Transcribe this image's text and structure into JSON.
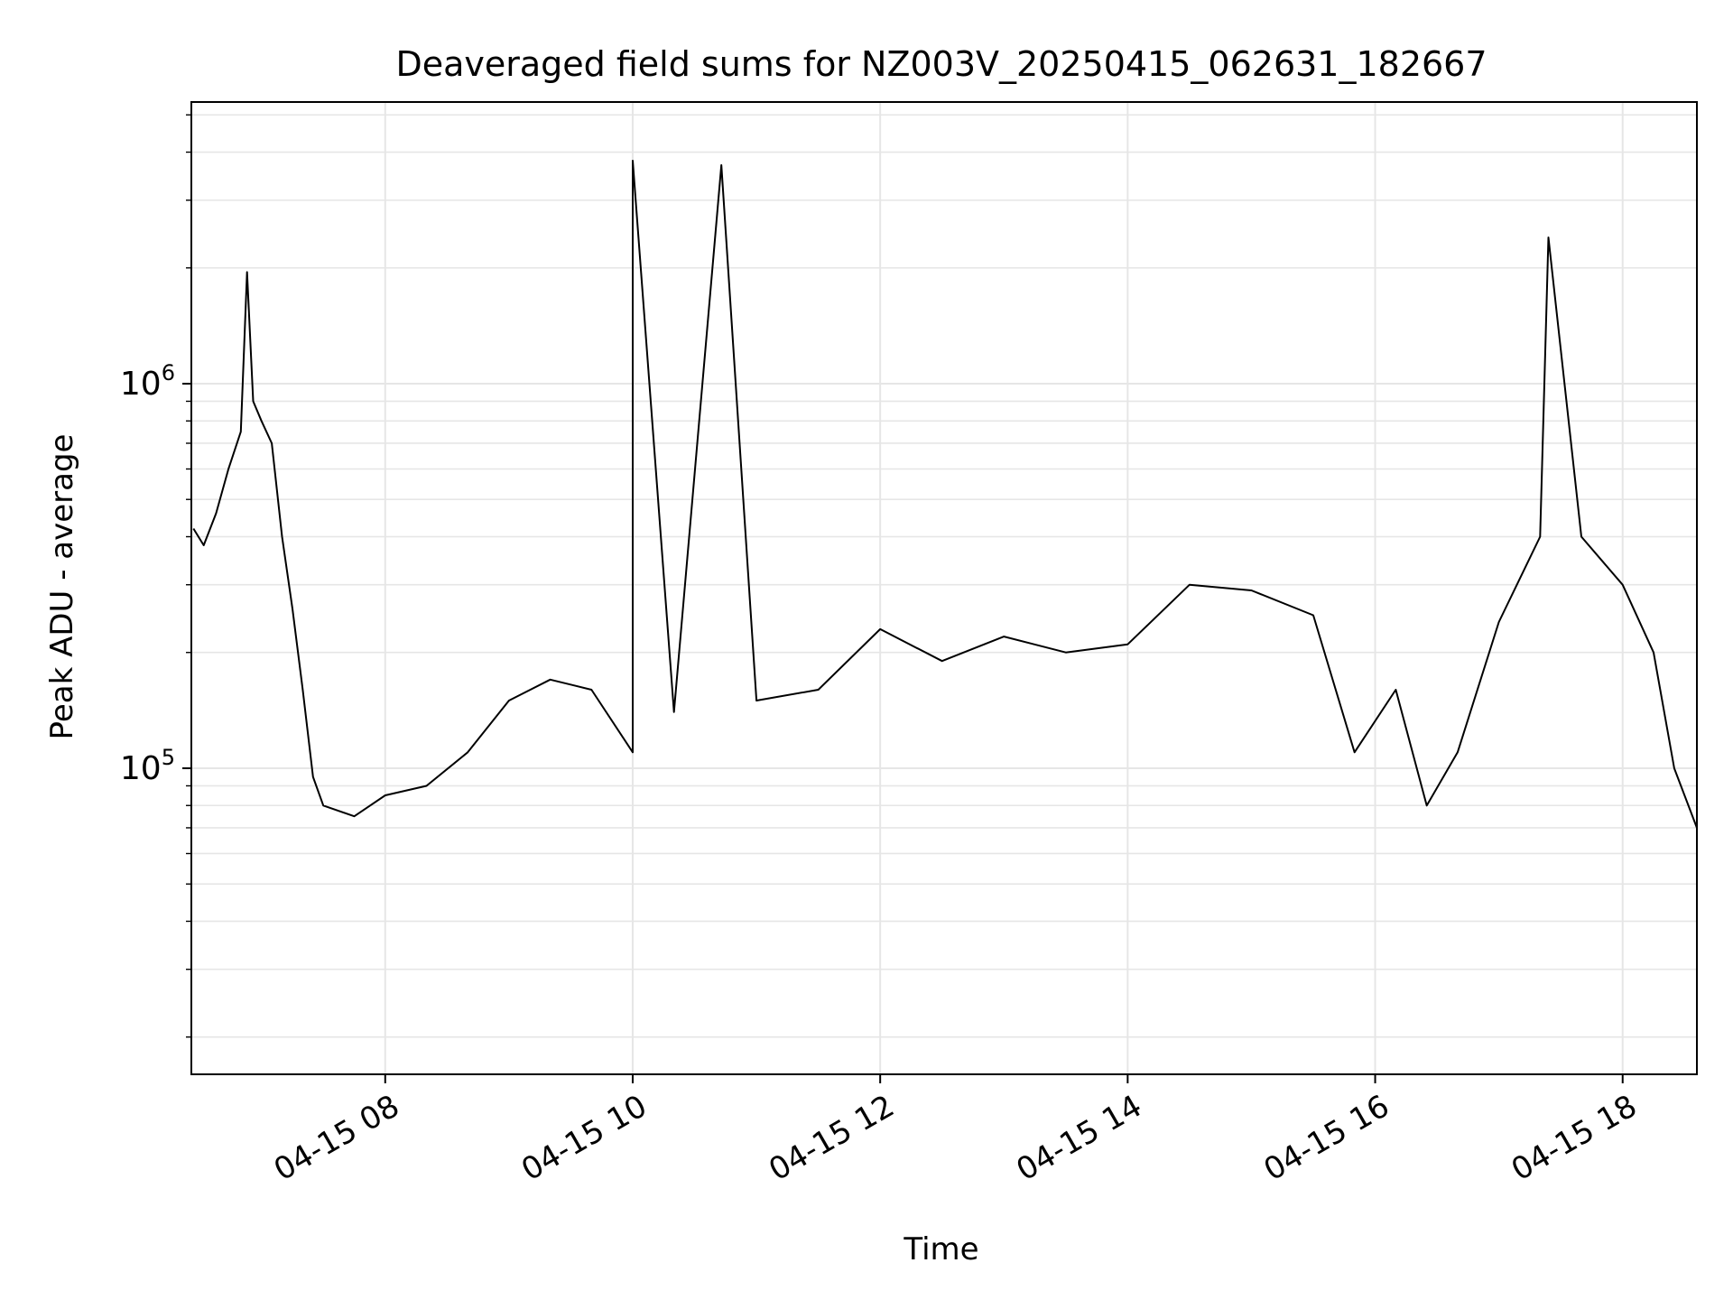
{
  "chart_data": {
    "type": "line",
    "title": "Deaveraged field sums for NZ003V_20250415_062631_182667",
    "xlabel": "Time",
    "ylabel": "Peak ADU - average",
    "yscale": "log",
    "ylim": [
      16000,
      5400000
    ],
    "xlim": [
      "2025-04-15 06:26",
      "2025-04-15 18:36"
    ],
    "x_ticks": [
      {
        "label": "04-15 08",
        "value": "2025-04-15 08:00"
      },
      {
        "label": "04-15 10",
        "value": "2025-04-15 10:00"
      },
      {
        "label": "04-15 12",
        "value": "2025-04-15 12:00"
      },
      {
        "label": "04-15 14",
        "value": "2025-04-15 14:00"
      },
      {
        "label": "04-15 16",
        "value": "2025-04-15 16:00"
      },
      {
        "label": "04-15 18",
        "value": "2025-04-15 18:00"
      }
    ],
    "y_ticks": [
      {
        "base": "10",
        "exp": "5",
        "value": 100000
      },
      {
        "base": "10",
        "exp": "6",
        "value": 1000000
      }
    ],
    "grid": true,
    "line_color": "#000000",
    "series": [
      {
        "values": [
          [
            "2025-04-15 06:27",
            420000
          ],
          [
            "2025-04-15 06:32",
            380000
          ],
          [
            "2025-04-15 06:38",
            460000
          ],
          [
            "2025-04-15 06:44",
            600000
          ],
          [
            "2025-04-15 06:50",
            750000
          ],
          [
            "2025-04-15 06:53",
            1950000
          ],
          [
            "2025-04-15 06:56",
            900000
          ],
          [
            "2025-04-15 07:00",
            800000
          ],
          [
            "2025-04-15 07:05",
            700000
          ],
          [
            "2025-04-15 07:10",
            400000
          ],
          [
            "2025-04-15 07:15",
            260000
          ],
          [
            "2025-04-15 07:20",
            160000
          ],
          [
            "2025-04-15 07:25",
            95000
          ],
          [
            "2025-04-15 07:30",
            80000
          ],
          [
            "2025-04-15 07:45",
            75000
          ],
          [
            "2025-04-15 08:00",
            85000
          ],
          [
            "2025-04-15 08:20",
            90000
          ],
          [
            "2025-04-15 08:40",
            110000
          ],
          [
            "2025-04-15 09:00",
            150000
          ],
          [
            "2025-04-15 09:20",
            170000
          ],
          [
            "2025-04-15 09:40",
            160000
          ],
          [
            "2025-04-15 10:00",
            110000
          ],
          [
            "2025-04-15 10:00",
            3800000
          ],
          [
            "2025-04-15 10:20",
            140000
          ],
          [
            "2025-04-15 10:43",
            3700000
          ],
          [
            "2025-04-15 11:00",
            150000
          ],
          [
            "2025-04-15 11:30",
            160000
          ],
          [
            "2025-04-15 12:00",
            230000
          ],
          [
            "2025-04-15 12:30",
            190000
          ],
          [
            "2025-04-15 13:00",
            220000
          ],
          [
            "2025-04-15 13:30",
            200000
          ],
          [
            "2025-04-15 14:00",
            210000
          ],
          [
            "2025-04-15 14:30",
            300000
          ],
          [
            "2025-04-15 15:00",
            290000
          ],
          [
            "2025-04-15 15:30",
            250000
          ],
          [
            "2025-04-15 15:50",
            110000
          ],
          [
            "2025-04-15 16:10",
            160000
          ],
          [
            "2025-04-15 16:25",
            80000
          ],
          [
            "2025-04-15 16:40",
            110000
          ],
          [
            "2025-04-15 17:00",
            240000
          ],
          [
            "2025-04-15 17:20",
            400000
          ],
          [
            "2025-04-15 17:24",
            2400000
          ],
          [
            "2025-04-15 17:40",
            400000
          ],
          [
            "2025-04-15 18:00",
            300000
          ],
          [
            "2025-04-15 18:15",
            200000
          ],
          [
            "2025-04-15 18:25",
            100000
          ],
          [
            "2025-04-15 18:36",
            70000
          ]
        ]
      }
    ]
  }
}
